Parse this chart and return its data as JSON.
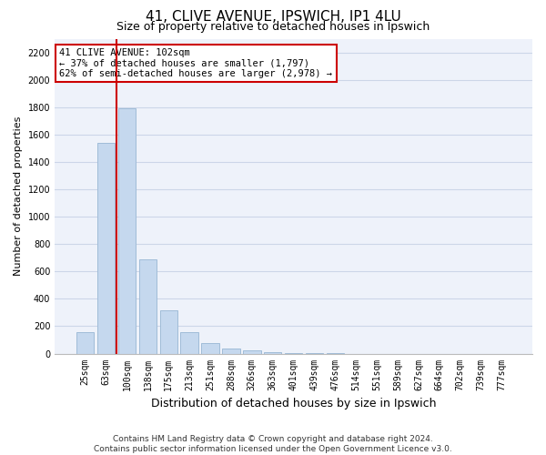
{
  "title_line1": "41, CLIVE AVENUE, IPSWICH, IP1 4LU",
  "title_line2": "Size of property relative to detached houses in Ipswich",
  "xlabel": "Distribution of detached houses by size in Ipswich",
  "ylabel": "Number of detached properties",
  "categories": [
    "25sqm",
    "63sqm",
    "100sqm",
    "138sqm",
    "175sqm",
    "213sqm",
    "251sqm",
    "288sqm",
    "326sqm",
    "363sqm",
    "401sqm",
    "439sqm",
    "476sqm",
    "514sqm",
    "551sqm",
    "589sqm",
    "627sqm",
    "664sqm",
    "702sqm",
    "739sqm",
    "777sqm"
  ],
  "values": [
    155,
    1540,
    1790,
    690,
    315,
    155,
    75,
    40,
    22,
    12,
    5,
    2,
    1,
    0,
    0,
    0,
    0,
    0,
    0,
    0,
    0
  ],
  "bar_color": "#c5d8ee",
  "bar_edgecolor": "#a0bcd8",
  "vline_color": "#cc0000",
  "vline_position": 1.5,
  "ylim_max": 2300,
  "yticks": [
    0,
    200,
    400,
    600,
    800,
    1000,
    1200,
    1400,
    1600,
    1800,
    2000,
    2200
  ],
  "annotation_text_line1": "41 CLIVE AVENUE: 102sqm",
  "annotation_text_line2": "← 37% of detached houses are smaller (1,797)",
  "annotation_text_line3": "62% of semi-detached houses are larger (2,978) →",
  "footnote_line1": "Contains HM Land Registry data © Crown copyright and database right 2024.",
  "footnote_line2": "Contains public sector information licensed under the Open Government Licence v3.0.",
  "grid_color": "#ccd6e8",
  "plot_bg_color": "#eef2fa",
  "fig_bg_color": "#ffffff",
  "title1_fontsize": 11,
  "title2_fontsize": 9,
  "ylabel_fontsize": 8,
  "xlabel_fontsize": 9,
  "tick_fontsize": 7,
  "annot_fontsize": 7.5,
  "footnote_fontsize": 6.5
}
